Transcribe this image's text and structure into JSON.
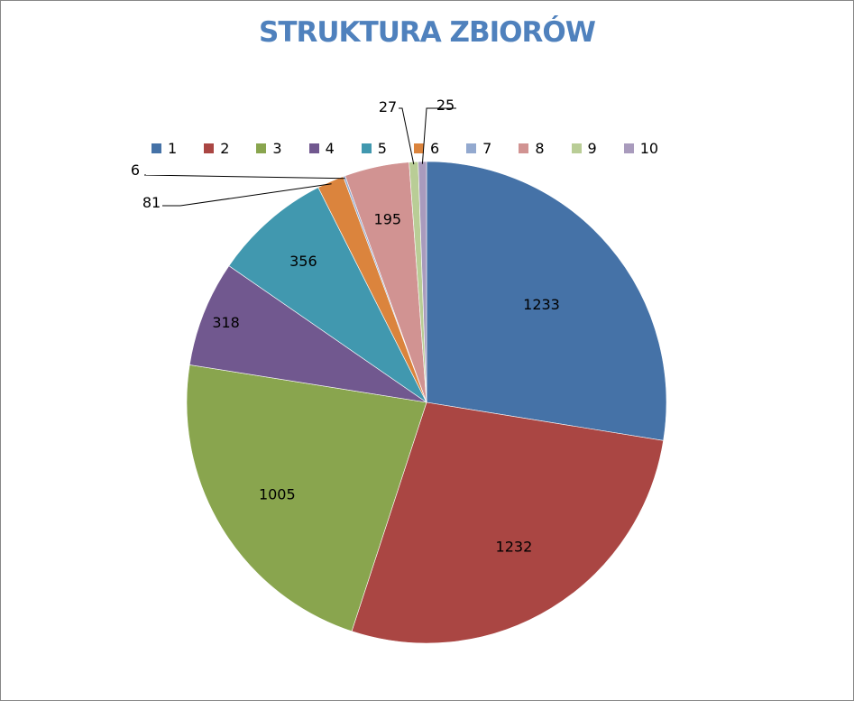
{
  "chart_data": {
    "type": "pie",
    "title": "STRUKTURA ZBIORÓW",
    "legend_position": "top",
    "categories": [
      "1",
      "2",
      "3",
      "4",
      "5",
      "6",
      "7",
      "8",
      "9",
      "10"
    ],
    "values": [
      1233,
      1232,
      1005,
      318,
      356,
      81,
      6,
      195,
      27,
      25
    ],
    "colors": [
      "#4572a7",
      "#aa4643",
      "#89a54e",
      "#71588f",
      "#4198af",
      "#db843d",
      "#93a9cf",
      "#d19392",
      "#b9cd96",
      "#a99bbd"
    ],
    "data_labels": [
      "1233",
      "1232",
      "1005",
      "318",
      "356",
      "81",
      "6",
      "195",
      "27",
      "25"
    ]
  }
}
